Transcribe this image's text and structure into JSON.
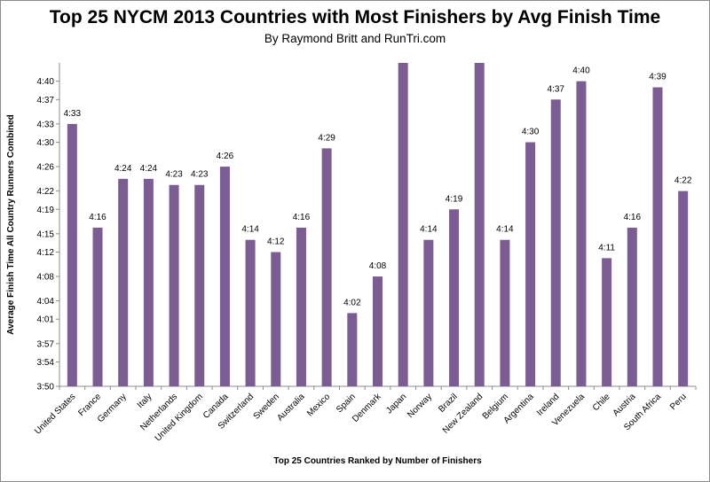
{
  "chart_data": {
    "type": "bar",
    "title": "Top 25 NYCM 2013 Countries with Most Finishers by Avg Finish Time",
    "subtitle": "By Raymond Britt and RunTri.com",
    "xlabel": "Top 25 Countries Ranked by Number of Finishers",
    "ylabel": "Average Finish Time All Country Runners Combined",
    "y_unit": "hours:minutes",
    "ylim": [
      "3:50",
      "4:43"
    ],
    "y_ticks": [
      "3:50",
      "3:54",
      "3:57",
      "4:01",
      "4:04",
      "4:08",
      "4:12",
      "4:15",
      "4:19",
      "4:22",
      "4:26",
      "4:30",
      "4:33",
      "4:37",
      "4:40"
    ],
    "grid": false,
    "bar_color": "#7b5d94",
    "categories": [
      "United States",
      "France",
      "Germany",
      "Italy",
      "Netherlands",
      "United Kingdom",
      "Canada",
      "Switzerland",
      "Sweden",
      "Australia",
      "Mexico",
      "Spain",
      "Denmark",
      "Japan",
      "Norway",
      "Brazil",
      "New Zealand",
      "Belgium",
      "Argentina",
      "Ireland",
      "Venezuela",
      "Chile",
      "Austria",
      "South Africa",
      "Peru"
    ],
    "values": [
      "4:33",
      "4:16",
      "4:24",
      "4:24",
      "4:23",
      "4:23",
      "4:26",
      "4:14",
      "4:12",
      "4:16",
      "4:29",
      "4:02",
      "4:08",
      "4:45",
      "4:14",
      "4:19",
      "4:45",
      "4:14",
      "4:30",
      "4:37",
      "4:40",
      "4:11",
      "4:16",
      "4:39",
      "4:22"
    ],
    "data_labels": [
      "4:33",
      "4:16",
      "4:24",
      "4:24",
      "4:23",
      "4:23",
      "4:26",
      "4:14",
      "4:12",
      "4:16",
      "4:29",
      "4:02",
      "4:08",
      "",
      "4:14",
      "4:19",
      "",
      "4:14",
      "4:30",
      "4:37",
      "4:40",
      "4:11",
      "4:16",
      "4:39",
      "4:22"
    ]
  }
}
